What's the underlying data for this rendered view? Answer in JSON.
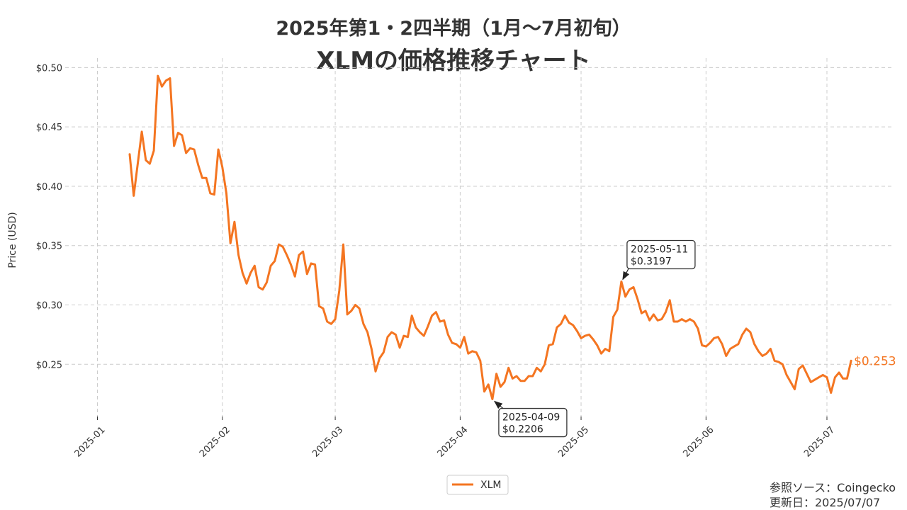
{
  "title_line1": "2025年第1・2四半期（1月〜7月初旬）",
  "title_line2": "XLMの価格推移チャート",
  "source_label": "参照ソース：Coingecko",
  "updated_label": "更新日：2025/07/07",
  "colors": {
    "series": "#F47521",
    "grid": "#cccccc",
    "text": "#333333"
  },
  "chart_data": {
    "type": "line",
    "xlabel": "",
    "ylabel": "Price (USD)",
    "ylim": [
      0.206,
      0.508
    ],
    "xlim": [
      "2024-12-24",
      "2025-07-17"
    ],
    "grid": true,
    "legend": "bottom-center",
    "x_ticks": [
      "2025-01",
      "2025-02",
      "2025-03",
      "2025-04",
      "2025-05",
      "2025-06",
      "2025-07"
    ],
    "y_ticks": [
      0.25,
      0.3,
      0.35,
      0.4,
      0.45,
      0.5
    ],
    "y_tick_labels": [
      "$0.25",
      "$0.30",
      "$0.35",
      "$0.40",
      "$0.45",
      "$0.50"
    ],
    "series": [
      {
        "name": "XLM",
        "start_date": "2025-01-09",
        "values": [
          0.427,
          0.392,
          0.419,
          0.446,
          0.422,
          0.419,
          0.43,
          0.493,
          0.484,
          0.489,
          0.491,
          0.434,
          0.445,
          0.443,
          0.428,
          0.432,
          0.431,
          0.418,
          0.407,
          0.407,
          0.394,
          0.393,
          0.431,
          0.416,
          0.394,
          0.352,
          0.37,
          0.342,
          0.327,
          0.318,
          0.327,
          0.333,
          0.315,
          0.313,
          0.319,
          0.333,
          0.337,
          0.351,
          0.349,
          0.342,
          0.334,
          0.324,
          0.342,
          0.345,
          0.326,
          0.335,
          0.334,
          0.299,
          0.297,
          0.286,
          0.284,
          0.288,
          0.312,
          0.351,
          0.292,
          0.295,
          0.3,
          0.297,
          0.284,
          0.277,
          0.263,
          0.244,
          0.255,
          0.26,
          0.273,
          0.277,
          0.275,
          0.264,
          0.274,
          0.273,
          0.291,
          0.281,
          0.277,
          0.274,
          0.282,
          0.291,
          0.294,
          0.286,
          0.287,
          0.275,
          0.268,
          0.267,
          0.264,
          0.273,
          0.259,
          0.261,
          0.26,
          0.253,
          0.227,
          0.233,
          0.2206,
          0.242,
          0.231,
          0.235,
          0.247,
          0.238,
          0.24,
          0.236,
          0.236,
          0.24,
          0.24,
          0.247,
          0.244,
          0.25,
          0.266,
          0.267,
          0.281,
          0.284,
          0.291,
          0.285,
          0.283,
          0.278,
          0.272,
          0.274,
          0.275,
          0.271,
          0.266,
          0.259,
          0.263,
          0.261,
          0.29,
          0.296,
          0.3197,
          0.307,
          0.313,
          0.315,
          0.305,
          0.293,
          0.295,
          0.287,
          0.292,
          0.287,
          0.288,
          0.294,
          0.304,
          0.286,
          0.286,
          0.288,
          0.286,
          0.288,
          0.286,
          0.28,
          0.266,
          0.265,
          0.268,
          0.272,
          0.273,
          0.267,
          0.257,
          0.263,
          0.265,
          0.267,
          0.275,
          0.28,
          0.277,
          0.267,
          0.261,
          0.257,
          0.259,
          0.263,
          0.253,
          0.252,
          0.25,
          0.241,
          0.235,
          0.229,
          0.246,
          0.249,
          0.242,
          0.235,
          0.237,
          0.239,
          0.241,
          0.239,
          0.226,
          0.239,
          0.243,
          0.238,
          0.238,
          0.253
        ]
      }
    ],
    "annotations": [
      {
        "date": "2025-04-09",
        "value": 0.2206,
        "label_date": "2025-04-09",
        "label_price": "$0.2206",
        "placement": "below-right"
      },
      {
        "date": "2025-05-11",
        "value": 0.3197,
        "label_date": "2025-05-11",
        "label_price": "$0.3197",
        "placement": "above-right"
      }
    ],
    "last_value_label": "$0.253"
  }
}
